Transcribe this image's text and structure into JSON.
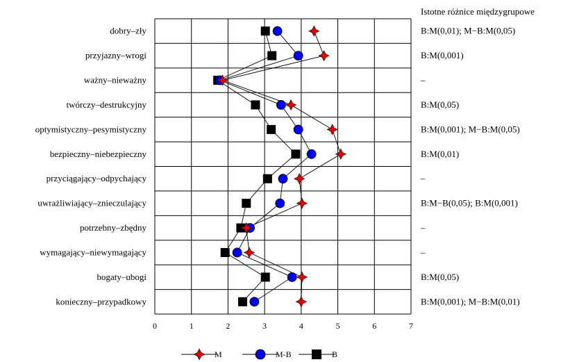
{
  "chart_data": {
    "type": "line",
    "orientation": "horizontal",
    "categories": [
      "dobry–zły",
      "przyjazny–wrogi",
      "ważny–nieważny",
      "twórczy–destrukcyjny",
      "optymistyczny–pesymistyczny",
      "bezpieczny–niebezpieczny",
      "przyciągający–odpychający",
      "uwrażliwiający–znieczulający",
      "potrzebny–zbędny",
      "wymagający–niewymagający",
      "bogaty–ubogi",
      "konieczny–przypadkowy"
    ],
    "series": [
      {
        "name": "M",
        "marker": "star4",
        "color": "#e00000",
        "values": [
          4.35,
          4.62,
          1.85,
          3.72,
          4.85,
          5.08,
          3.95,
          4.02,
          2.5,
          2.58,
          4.02,
          4.0
        ]
      },
      {
        "name": "M-B",
        "marker": "circle",
        "color": "#0000ee",
        "values": [
          3.35,
          3.92,
          1.78,
          3.45,
          3.92,
          4.28,
          3.5,
          3.42,
          2.6,
          2.25,
          3.75,
          2.72
        ]
      },
      {
        "name": "B",
        "marker": "square",
        "color": "#000000",
        "values": [
          3.02,
          3.2,
          1.72,
          2.75,
          3.18,
          3.85,
          3.08,
          2.5,
          2.35,
          1.92,
          3.02,
          2.4
        ]
      }
    ],
    "xlim": [
      0,
      7
    ],
    "xticks": [
      "0",
      "1",
      "2",
      "3",
      "4",
      "5",
      "6",
      "7"
    ],
    "grid": true,
    "legend_position": "bottom",
    "side_header": "Istotne różnice międzygrupowe",
    "side_notes": [
      "B:M(0,01);  M−B:M(0,05)",
      "B:M(0,001)",
      "–",
      "B:M(0,05)",
      "B:M(0,001);  M−B:M(0,05)",
      "B:M(0,01)",
      "–",
      "B:M−B(0,05);  B:M(0,001)",
      "–",
      "–",
      "B:M(0,05)",
      "B:M(0,001);  M−B:M(0,01)"
    ]
  }
}
